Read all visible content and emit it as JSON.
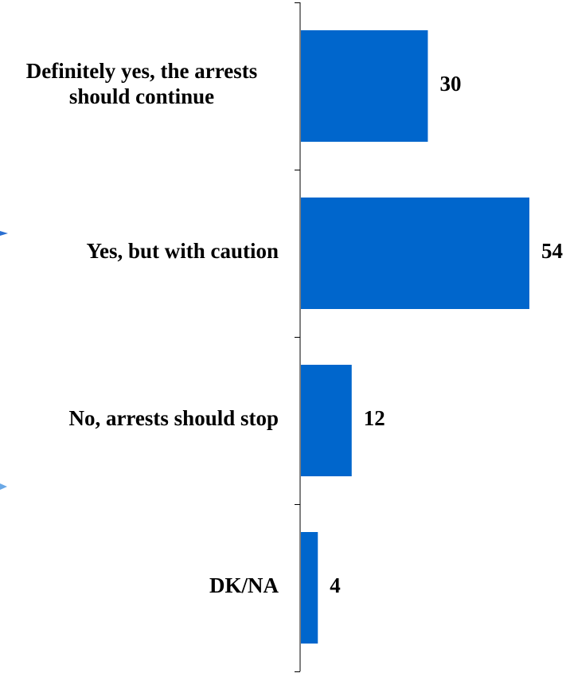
{
  "colors": {
    "bar": "#0066cc",
    "axis": "#000000",
    "text": "#000000",
    "side_marks": "#2a6fd1"
  },
  "chart_data": {
    "type": "bar",
    "orientation": "horizontal",
    "categories": [
      "Definitely yes, the arrests should continue",
      "Yes, but with caution",
      "No, arrests should stop",
      "DK/NA"
    ],
    "category_lines": [
      [
        "Definitely yes, the arrests",
        "should continue"
      ],
      [
        "Yes, but with caution"
      ],
      [
        "No, arrests should stop"
      ],
      [
        "DK/NA"
      ]
    ],
    "values": [
      30,
      54,
      12,
      4
    ],
    "xlim": [
      0,
      54
    ],
    "grid": false,
    "legend": "none"
  }
}
